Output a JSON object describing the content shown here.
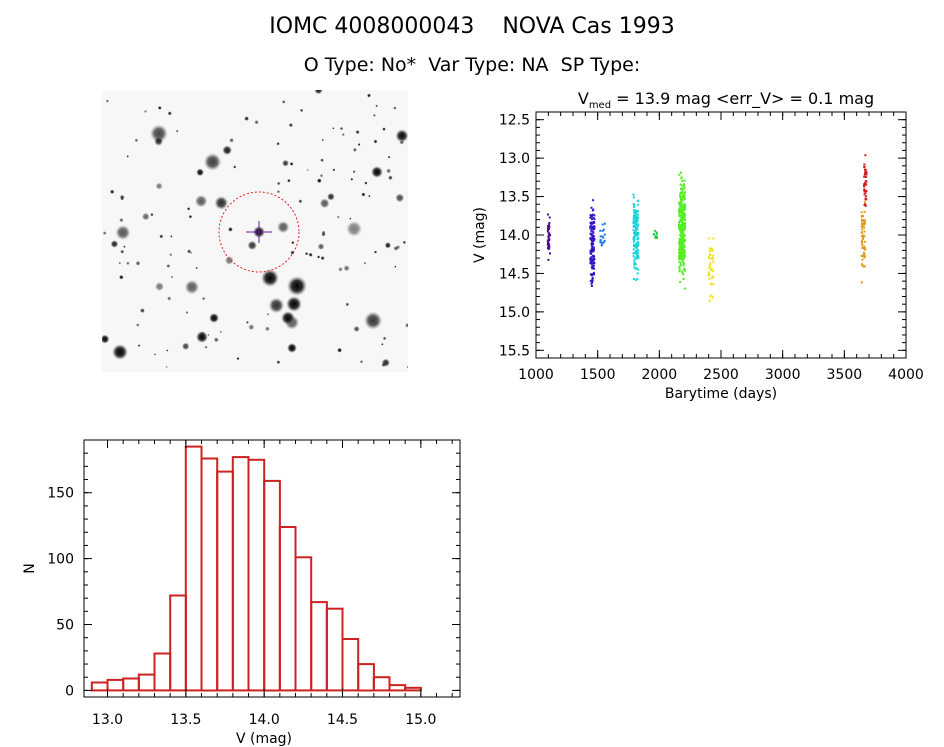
{
  "header": {
    "title": "IOMC 4008000043    NOVA Cas 1993",
    "subtitle": "O Type: No*  Var Type: NA  SP Type:"
  },
  "starfield": {
    "icon": "star-field-image",
    "circle_color": "#dd2222",
    "crosshair_color": "#6a1aa0"
  },
  "chart_data": [
    {
      "type": "scatter",
      "title_parts": {
        "v": "V",
        "sub": "med",
        "rest": " = 13.9 mag <err_V> = 0.1 mag"
      },
      "xlabel": "Barytime (days)",
      "ylabel": "V (mag)",
      "xlim": [
        1000,
        4000
      ],
      "ylim": [
        15.6,
        12.4
      ],
      "y_inverted": true,
      "x_ticks": [
        1000,
        1500,
        2000,
        2500,
        3000,
        3500,
        4000
      ],
      "y_ticks": [
        12.5,
        13.0,
        13.5,
        14.0,
        14.5,
        15.0,
        15.5
      ],
      "series": [
        {
          "color": "#4b0a8c",
          "x_range": [
            1095,
            1115
          ],
          "y_range": [
            13.7,
            14.42
          ],
          "n": 40
        },
        {
          "color": "#3512c4",
          "x_range": [
            1440,
            1475
          ],
          "y_range": [
            13.45,
            14.85
          ],
          "n": 130
        },
        {
          "color": "#1a7ae0",
          "x_range": [
            1510,
            1560
          ],
          "y_range": [
            13.8,
            14.3
          ],
          "n": 18
        },
        {
          "color": "#1ad4dc",
          "x_range": [
            1790,
            1830
          ],
          "y_range": [
            13.35,
            14.75
          ],
          "n": 160
        },
        {
          "color": "#22cc44",
          "x_range": [
            1950,
            1985
          ],
          "y_range": [
            13.9,
            14.1
          ],
          "n": 12
        },
        {
          "color": "#55ee22",
          "x_range": [
            2160,
            2210
          ],
          "y_range": [
            13.05,
            14.8
          ],
          "n": 340
        },
        {
          "color": "#f2e21a",
          "x_range": [
            2400,
            2440
          ],
          "y_range": [
            13.85,
            15.0
          ],
          "n": 40
        },
        {
          "color": "#e09a1a",
          "x_range": [
            3640,
            3670
          ],
          "y_range": [
            13.3,
            14.7
          ],
          "n": 60
        },
        {
          "color": "#d01e1e",
          "x_range": [
            3660,
            3680
          ],
          "y_range": [
            12.9,
            13.75
          ],
          "n": 40
        }
      ]
    },
    {
      "type": "bar",
      "title": "",
      "xlabel": "V (mag)",
      "ylabel": "N",
      "xlim": [
        12.85,
        15.25
      ],
      "ylim": [
        -5,
        190
      ],
      "x_ticks": [
        "13.0",
        "13.5",
        "14.0",
        "14.5",
        "15.0"
      ],
      "y_ticks": [
        "0",
        "50",
        "100",
        "150"
      ],
      "bar_color": "#cc2222",
      "bin_start": 12.9,
      "bin_width": 0.1,
      "values": [
        6,
        8,
        9,
        12,
        28,
        72,
        185,
        176,
        166,
        177,
        175,
        159,
        124,
        101,
        67,
        62,
        39,
        20,
        10,
        4,
        2
      ]
    }
  ]
}
